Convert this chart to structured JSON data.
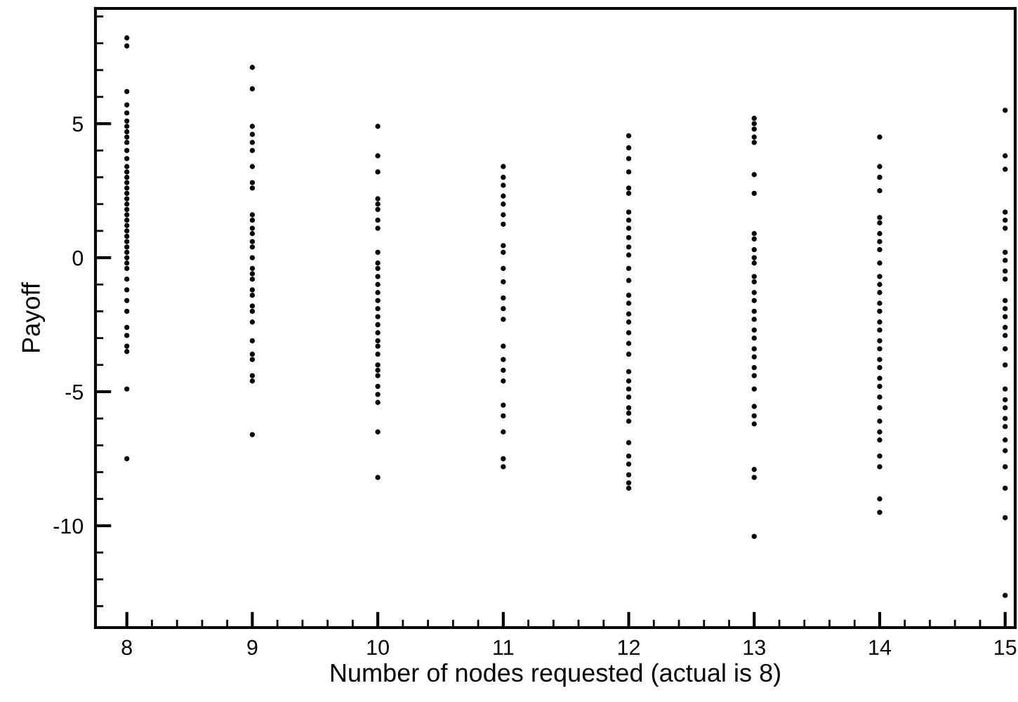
{
  "chart_data": {
    "type": "scatter",
    "xlabel": "Number of nodes requested (actual is 8)",
    "ylabel": "Payoff",
    "marker": "circle",
    "grid": false,
    "legend": false,
    "xlim": [
      7.75,
      15.08
    ],
    "ylim": [
      -13.8,
      9.3
    ],
    "xticks": [
      8,
      9,
      10,
      11,
      12,
      13,
      14,
      15,
      {
        "value": 8.2,
        "label": null
      },
      {
        "value": 8.4,
        "label": null
      },
      {
        "value": 8.6,
        "label": null
      },
      {
        "value": 8.8,
        "label": null
      },
      {
        "value": 9.2,
        "label": null
      },
      {
        "value": 9.4,
        "label": null
      },
      {
        "value": 9.6,
        "label": null
      },
      {
        "value": 9.8,
        "label": null
      },
      {
        "value": 10.2,
        "label": null
      },
      {
        "value": 10.4,
        "label": null
      },
      {
        "value": 10.6,
        "label": null
      },
      {
        "value": 10.8,
        "label": null
      },
      {
        "value": 11.2,
        "label": null
      },
      {
        "value": 11.4,
        "label": null
      },
      {
        "value": 11.6,
        "label": null
      },
      {
        "value": 11.8,
        "label": null
      },
      {
        "value": 12.2,
        "label": null
      },
      {
        "value": 12.4,
        "label": null
      },
      {
        "value": 12.6,
        "label": null
      },
      {
        "value": 12.8,
        "label": null
      },
      {
        "value": 13.2,
        "label": null
      },
      {
        "value": 13.4,
        "label": null
      },
      {
        "value": 13.6,
        "label": null
      },
      {
        "value": 13.8,
        "label": null
      },
      {
        "value": 14.2,
        "label": null
      },
      {
        "value": 14.4,
        "label": null
      },
      {
        "value": 14.6,
        "label": null
      },
      {
        "value": 14.8,
        "label": null
      }
    ],
    "yticks": [
      -10,
      -5,
      0,
      5,
      {
        "value": -13,
        "label": null
      },
      {
        "value": -12,
        "label": null
      },
      {
        "value": -11,
        "label": null
      },
      {
        "value": -9,
        "label": null
      },
      {
        "value": -8,
        "label": null
      },
      {
        "value": -7,
        "label": null
      },
      {
        "value": -6,
        "label": null
      },
      {
        "value": -4,
        "label": null
      },
      {
        "value": -3,
        "label": null
      },
      {
        "value": -2,
        "label": null
      },
      {
        "value": -1,
        "label": null
      },
      {
        "value": 1,
        "label": null
      },
      {
        "value": 2,
        "label": null
      },
      {
        "value": 3,
        "label": null
      },
      {
        "value": 4,
        "label": null
      },
      {
        "value": 6,
        "label": null
      },
      {
        "value": 7,
        "label": null
      },
      {
        "value": 8,
        "label": null
      },
      {
        "value": 9,
        "label": null
      }
    ],
    "series": [
      {
        "color": "#000000",
        "x": [
          8,
          8,
          8,
          8,
          8,
          8,
          8,
          8,
          8,
          8,
          8,
          8,
          8,
          8,
          8,
          8,
          8,
          8,
          8,
          8,
          8,
          8,
          8,
          8,
          8,
          8,
          8,
          8,
          8,
          8,
          8,
          8,
          8,
          8,
          8,
          8,
          8,
          8,
          8,
          8,
          8,
          8
        ],
        "values": [
          8.2,
          7.9,
          6.2,
          5.7,
          5.4,
          5.1,
          4.9,
          4.7,
          4.5,
          4.3,
          4.0,
          3.7,
          3.4,
          3.2,
          3.0,
          2.8,
          2.6,
          2.4,
          2.2,
          2.0,
          1.8,
          1.6,
          1.4,
          1.2,
          1.0,
          0.8,
          0.6,
          0.4,
          0.2,
          0.0,
          -0.2,
          -0.4,
          -0.8,
          -1.2,
          -1.6,
          -2.0,
          -2.6,
          -2.9,
          -3.3,
          -3.5,
          -4.9,
          -7.5
        ]
      },
      {
        "color": "#000000",
        "x": [
          9,
          9,
          9,
          9,
          9,
          9,
          9,
          9,
          9,
          9,
          9,
          9,
          9,
          9,
          9,
          9,
          9,
          9,
          9,
          9,
          9,
          9,
          9,
          9,
          9,
          9,
          9,
          9,
          9,
          9
        ],
        "values": [
          7.1,
          6.3,
          4.9,
          4.6,
          4.3,
          4.0,
          3.4,
          2.8,
          2.6,
          1.6,
          1.4,
          1.1,
          0.9,
          0.6,
          0.4,
          0.0,
          -0.4,
          -0.6,
          -0.8,
          -1.2,
          -1.4,
          -1.8,
          -2.0,
          -2.4,
          -3.1,
          -3.6,
          -3.8,
          -4.4,
          -4.6,
          -6.6
        ]
      },
      {
        "color": "#000000",
        "x": [
          10,
          10,
          10,
          10,
          10,
          10,
          10,
          10,
          10,
          10,
          10,
          10,
          10,
          10,
          10,
          10,
          10,
          10,
          10,
          10,
          10,
          10,
          10,
          10,
          10,
          10,
          10,
          10,
          10,
          10
        ],
        "values": [
          4.9,
          3.8,
          3.2,
          2.2,
          2.0,
          1.8,
          1.4,
          1.1,
          0.2,
          -0.2,
          -0.4,
          -0.7,
          -1.0,
          -1.3,
          -1.6,
          -1.9,
          -2.2,
          -2.5,
          -2.8,
          -3.1,
          -3.3,
          -3.6,
          -4.0,
          -4.2,
          -4.4,
          -4.8,
          -5.1,
          -5.4,
          -6.5,
          -8.2
        ]
      },
      {
        "color": "#000000",
        "x": [
          11,
          11,
          11,
          11,
          11,
          11,
          11,
          11,
          11,
          11,
          11,
          11,
          11,
          11,
          11,
          11,
          11,
          11,
          11,
          11,
          11,
          11,
          11
        ],
        "values": [
          3.4,
          3.0,
          2.7,
          2.3,
          2.0,
          1.6,
          1.25,
          0.45,
          0.2,
          -0.4,
          -0.9,
          -1.5,
          -1.9,
          -2.3,
          -3.3,
          -3.8,
          -4.2,
          -4.6,
          -5.5,
          -5.9,
          -6.5,
          -7.5,
          -7.8
        ]
      },
      {
        "color": "#000000",
        "x": [
          12,
          12,
          12,
          12,
          12,
          12,
          12,
          12,
          12,
          12,
          12,
          12,
          12,
          12,
          12,
          12,
          12,
          12,
          12,
          12,
          12,
          12,
          12,
          12,
          12,
          12,
          12,
          12,
          12,
          12,
          12,
          12,
          12,
          12
        ],
        "values": [
          4.55,
          4.1,
          3.7,
          3.2,
          2.6,
          2.4,
          1.7,
          1.4,
          1.1,
          0.75,
          0.4,
          0.1,
          -0.4,
          -0.85,
          -1.4,
          -1.7,
          -2.1,
          -2.4,
          -2.8,
          -3.2,
          -3.6,
          -4.25,
          -4.6,
          -4.9,
          -5.2,
          -5.6,
          -5.8,
          -6.1,
          -6.9,
          -7.4,
          -7.7,
          -8.1,
          -8.4,
          -8.6
        ]
      },
      {
        "color": "#000000",
        "x": [
          13,
          13,
          13,
          13,
          13,
          13,
          13,
          13,
          13,
          13,
          13,
          13,
          13,
          13,
          13,
          13,
          13,
          13,
          13,
          13,
          13,
          13,
          13,
          13,
          13,
          13,
          13,
          13,
          13,
          13,
          13
        ],
        "values": [
          5.2,
          5.0,
          4.8,
          4.5,
          4.3,
          3.1,
          2.4,
          0.9,
          0.7,
          0.3,
          0.0,
          -0.2,
          -0.7,
          -0.9,
          -1.3,
          -1.6,
          -2.0,
          -2.3,
          -2.7,
          -3.0,
          -3.4,
          -3.7,
          -4.1,
          -4.4,
          -4.9,
          -5.55,
          -5.9,
          -6.2,
          -7.9,
          -8.2,
          -10.4
        ]
      },
      {
        "color": "#000000",
        "x": [
          14,
          14,
          14,
          14,
          14,
          14,
          14,
          14,
          14,
          14,
          14,
          14,
          14,
          14,
          14,
          14,
          14,
          14,
          14,
          14,
          14,
          14,
          14,
          14,
          14,
          14,
          14,
          14,
          14,
          14,
          14,
          14
        ],
        "values": [
          4.5,
          3.4,
          3.0,
          2.5,
          1.5,
          1.3,
          0.9,
          0.6,
          0.3,
          -0.2,
          -0.7,
          -1.0,
          -1.3,
          -1.7,
          -2.0,
          -2.4,
          -2.7,
          -3.1,
          -3.4,
          -3.8,
          -4.1,
          -4.5,
          -4.8,
          -5.2,
          -5.6,
          -6.1,
          -6.5,
          -6.8,
          -7.4,
          -7.8,
          -9.0,
          -9.5
        ]
      },
      {
        "color": "#000000",
        "x": [
          15,
          15,
          15,
          15,
          15,
          15,
          15,
          15,
          15,
          15,
          15,
          15,
          15,
          15,
          15,
          15,
          15,
          15,
          15,
          15,
          15,
          15,
          15,
          15,
          15,
          15,
          15,
          15
        ],
        "values": [
          5.5,
          3.8,
          3.3,
          1.7,
          1.4,
          1.1,
          0.2,
          -0.1,
          -0.5,
          -0.8,
          -1.6,
          -1.9,
          -2.2,
          -2.6,
          -2.9,
          -3.4,
          -4.0,
          -4.9,
          -5.3,
          -5.6,
          -6.0,
          -6.3,
          -6.8,
          -7.2,
          -7.8,
          -8.6,
          -9.7,
          -12.6
        ]
      }
    ]
  }
}
